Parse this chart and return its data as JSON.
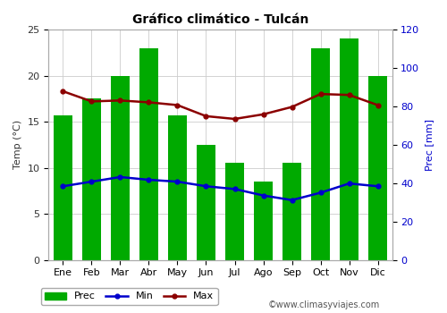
{
  "title": "Gráfico climático - Tulcán",
  "months": [
    "Ene",
    "Feb",
    "Mar",
    "Abr",
    "May",
    "Jun",
    "Jul",
    "Ago",
    "Sep",
    "Oct",
    "Nov",
    "Dic"
  ],
  "prec_left": [
    15.7,
    17.5,
    20.0,
    23.0,
    15.7,
    12.5,
    10.5,
    8.5,
    10.5,
    23.0,
    24.0,
    20.0
  ],
  "temp_min": [
    8.0,
    8.5,
    9.0,
    8.7,
    8.5,
    8.0,
    7.7,
    7.0,
    6.5,
    7.3,
    8.3,
    8.0
  ],
  "temp_max": [
    18.3,
    17.2,
    17.3,
    17.1,
    16.8,
    15.6,
    15.3,
    15.8,
    16.6,
    18.0,
    17.9,
    16.8
  ],
  "bar_color": "#00aa00",
  "min_color": "#0000cc",
  "max_color": "#8b0000",
  "ylabel_left": "Temp (°C)",
  "ylabel_right": "Prec [mm]",
  "ylim_left": [
    0,
    25
  ],
  "ylim_right": [
    0,
    120
  ],
  "yticks_left": [
    0,
    5,
    10,
    15,
    20,
    25
  ],
  "yticks_right": [
    0,
    20,
    40,
    60,
    80,
    100,
    120
  ],
  "watermark": "©www.climasyviajes.com",
  "bg_color": "#ffffff",
  "grid_color": "#cccccc",
  "title_fontsize": 10,
  "axis_fontsize": 8,
  "tick_fontsize": 8
}
